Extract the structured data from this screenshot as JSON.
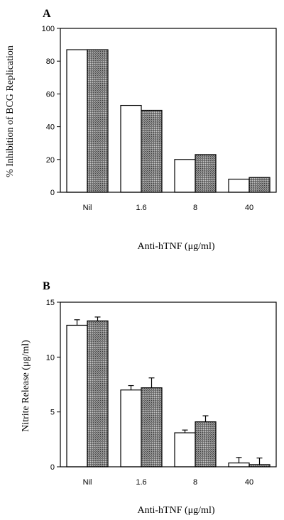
{
  "chart_data": [
    {
      "type": "bar",
      "panel": "A",
      "categories": [
        "Nil",
        "1.6",
        "8",
        "40"
      ],
      "series": [
        {
          "values": [
            87,
            53,
            20,
            8
          ],
          "fill": "#ffffff"
        },
        {
          "values": [
            87,
            50,
            23,
            9
          ],
          "fill": "#707070"
        }
      ],
      "ylabel": "% Inhibition of BCG Replication",
      "xlabel": "Anti-hTNF (μg/ml)",
      "ylim": [
        0,
        100
      ],
      "yticks": [
        "0",
        "20",
        "40",
        "60",
        "80",
        "100"
      ],
      "grid": false,
      "error_bars": false
    },
    {
      "type": "bar",
      "panel": "B",
      "categories": [
        "Nil",
        "1.6",
        "8",
        "40"
      ],
      "series": [
        {
          "values": [
            12.9,
            7.0,
            3.1,
            0.35
          ],
          "errors": [
            0.5,
            0.4,
            0.25,
            0.5
          ],
          "fill": "#ffffff"
        },
        {
          "values": [
            13.3,
            7.2,
            4.1,
            0.2
          ],
          "errors": [
            0.35,
            0.9,
            0.55,
            0.6
          ],
          "fill": "#707070"
        }
      ],
      "ylabel": "Nitrite Release (μg/ml)",
      "xlabel": "Anti-hTNF (μg/ml)",
      "ylim": [
        0,
        15
      ],
      "yticks": [
        "0",
        "5",
        "10",
        "15"
      ],
      "grid": false,
      "error_bars": true
    }
  ]
}
